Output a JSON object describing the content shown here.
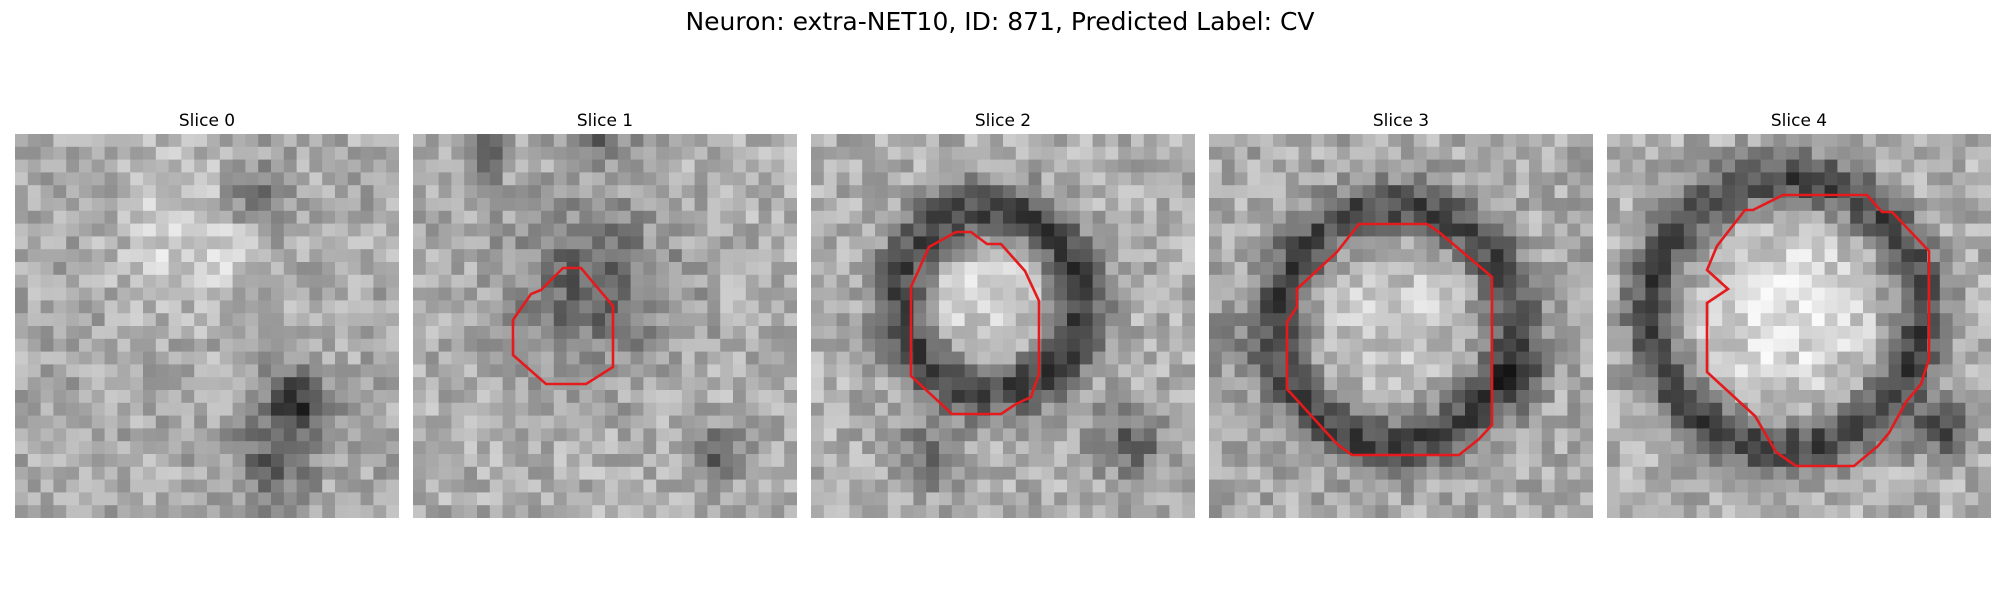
{
  "title": "Neuron: extra-NET10, ID: 871, Predicted Label: CV",
  "outline_color": "#e41a1c",
  "slices": [
    {
      "label": "Slice 0",
      "has_outline": false
    },
    {
      "label": "Slice 1",
      "has_outline": true
    },
    {
      "label": "Slice 2",
      "has_outline": true
    },
    {
      "label": "Slice 3",
      "has_outline": true
    },
    {
      "label": "Slice 4",
      "has_outline": true
    }
  ]
}
